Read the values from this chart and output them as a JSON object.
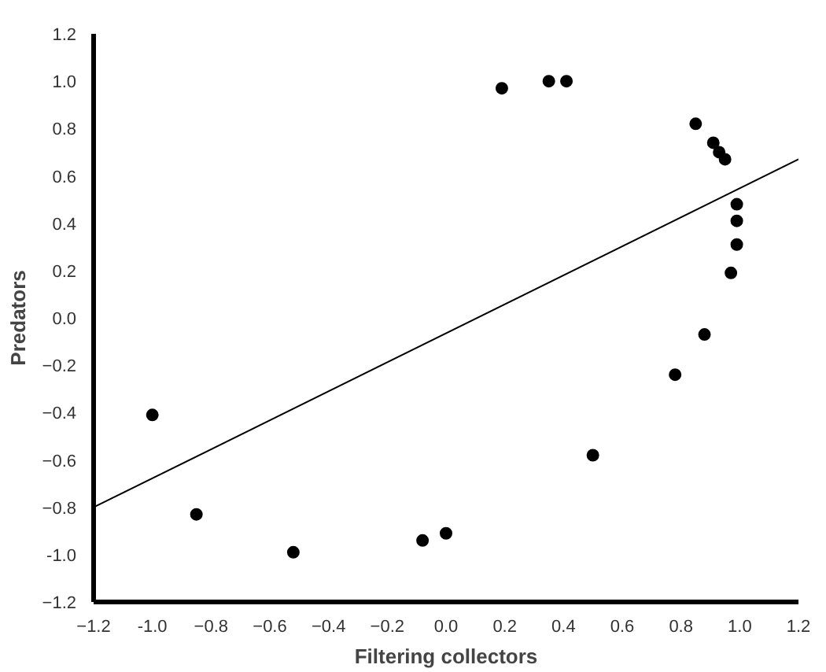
{
  "chart_data": {
    "type": "scatter",
    "xlabel": "Filtering collectors",
    "ylabel": "Predators",
    "marker": "circle",
    "grid": false,
    "xlim": [
      -1.2,
      1.2
    ],
    "ylim": [
      -1.2,
      1.2
    ],
    "xticks": [
      -1.2,
      {
        "value": -1.0,
        "label": "-1.0"
      },
      -0.8,
      -0.6,
      -0.4,
      -0.2,
      {
        "value": 0,
        "label": "0.0"
      },
      0.2,
      0.4,
      0.6,
      0.8,
      {
        "value": 1.0,
        "label": "1.0"
      },
      1.2
    ],
    "yticks": [
      -1.2,
      {
        "value": -1.0,
        "label": "-1.0"
      },
      -0.8,
      -0.6,
      -0.4,
      -0.2,
      {
        "value": 0,
        "label": "0.0"
      },
      0.2,
      0.4,
      0.6,
      0.8,
      {
        "value": 1.0,
        "label": "1.0"
      },
      1.2
    ],
    "series": [
      {
        "color": "#000000",
        "x": [
          0.19,
          0.35,
          0.41,
          0.85,
          0.91,
          0.93,
          0.95,
          0.99,
          0.99,
          0.99,
          0.97,
          0.88,
          0.78,
          0.5,
          0.0,
          -0.08,
          -0.52,
          -0.85,
          -1.0
        ],
        "values": [
          0.97,
          1.0,
          1.0,
          0.82,
          0.74,
          0.7,
          0.67,
          0.48,
          0.41,
          0.31,
          0.19,
          -0.07,
          -0.24,
          -0.58,
          -0.91,
          -0.94,
          -0.99,
          -0.83,
          -0.41
        ]
      },
      {
        "type": "line",
        "color": "#000000",
        "marker": "none",
        "x": [
          -1.2,
          1.2
        ],
        "values": [
          -0.8,
          0.67
        ]
      }
    ]
  }
}
